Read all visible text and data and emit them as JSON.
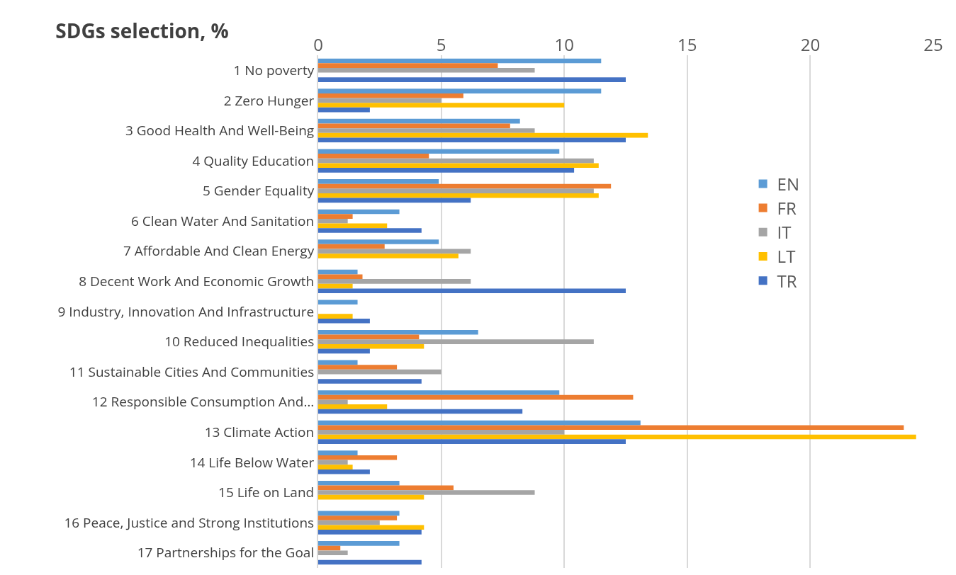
{
  "chart_data": {
    "type": "bar",
    "orientation": "horizontal",
    "title": "SDGs selection, %",
    "categories": [
      "1 No poverty",
      "2 Zero Hunger",
      "3 Good Health And Well-Being",
      "4 Quality Education",
      "5 Gender Equality",
      "6 Clean Water And Sanitation",
      "7 Affordable And Clean Energy",
      "8 Decent Work And Economic Growth",
      "9 Industry, Innovation And Infrastructure",
      "10 Reduced Inequalities",
      "11 Sustainable Cities And Communities",
      "12 Responsible Consumption And…",
      "13 Climate Action",
      "14 Life Below Water",
      "15 Life on Land",
      "16 Peace, Justice and Strong Institutions",
      "17 Partnerships for the Goal"
    ],
    "series": [
      {
        "name": "EN",
        "color": "#5b9bd5",
        "values": [
          11.5,
          11.5,
          8.2,
          9.8,
          4.9,
          3.3,
          4.9,
          1.6,
          1.6,
          6.5,
          1.6,
          9.8,
          13.1,
          1.6,
          3.3,
          3.3,
          3.3
        ]
      },
      {
        "name": "FR",
        "color": "#ed7d31",
        "values": [
          7.3,
          5.9,
          7.8,
          4.5,
          11.9,
          1.4,
          2.7,
          1.8,
          null,
          4.1,
          3.2,
          12.8,
          23.8,
          3.2,
          5.5,
          3.2,
          0.9
        ]
      },
      {
        "name": "IT",
        "color": "#a5a5a5",
        "values": [
          8.8,
          5.0,
          8.8,
          11.2,
          11.2,
          1.2,
          6.2,
          6.2,
          null,
          11.2,
          5.0,
          1.2,
          10.0,
          1.2,
          8.8,
          2.5,
          1.2
        ]
      },
      {
        "name": "LT",
        "color": "#ffc000",
        "values": [
          null,
          10.0,
          13.4,
          11.4,
          11.4,
          2.8,
          5.7,
          1.4,
          1.4,
          4.3,
          null,
          2.8,
          24.3,
          1.4,
          4.3,
          4.3,
          null
        ]
      },
      {
        "name": "TR",
        "color": "#4472c4",
        "values": [
          12.5,
          2.1,
          12.5,
          10.4,
          6.2,
          4.2,
          null,
          12.5,
          2.1,
          2.1,
          4.2,
          8.3,
          12.5,
          2.1,
          null,
          4.2,
          4.2
        ]
      }
    ],
    "xlim": [
      0,
      25
    ],
    "xticks": [
      0,
      5,
      10,
      15,
      20,
      25
    ],
    "grid": "x",
    "legend": "right"
  }
}
